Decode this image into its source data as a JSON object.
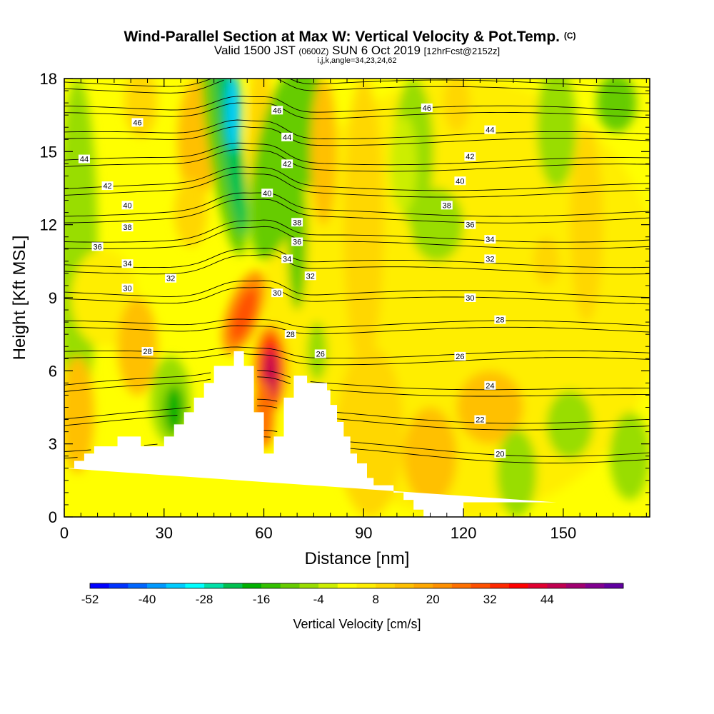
{
  "title": {
    "main": "Wind-Parallel Section at Max W: Vertical Velocity & Pot.Temp.",
    "main_tag": "(C)",
    "sub_a": "Valid 1500 JST",
    "sub_b": "(0600Z)",
    "sub_c": "SUN 6 Oct 2019",
    "sub_d": "[12hrFcst@2152z]",
    "sub_e": "i,j,k,angle=34,23,24,62"
  },
  "chart_data": {
    "type": "heatmap",
    "xlabel": "Distance [nm]",
    "ylabel": "Height [Kft MSL]",
    "xlim": [
      0,
      176
    ],
    "ylim": [
      0,
      18
    ],
    "xticks": [
      0,
      30,
      60,
      90,
      120,
      150
    ],
    "yticks": [
      0,
      3,
      6,
      9,
      12,
      15,
      18
    ],
    "colorbar": {
      "label": "Vertical Velocity [cm/s]",
      "tick_labels": [
        "-52",
        "-40",
        "-28",
        "-16",
        "-4",
        "8",
        "20",
        "32",
        "44"
      ],
      "levels_start": -52,
      "levels_step": 4,
      "colors": [
        "#0000ff",
        "#0033ff",
        "#0066ff",
        "#0099ff",
        "#00ccff",
        "#00ffff",
        "#00e0a8",
        "#00c050",
        "#00b000",
        "#33c000",
        "#66cc00",
        "#99dd00",
        "#ccee00",
        "#ffff00",
        "#ffee00",
        "#ffd700",
        "#ffc000",
        "#ffa800",
        "#ff9000",
        "#ff7000",
        "#ff5000",
        "#ff2800",
        "#ff0000",
        "#e00030",
        "#c00050",
        "#a00070",
        "#800090",
        "#6000a0"
      ]
    },
    "terrain_profile": {
      "x": [
        0,
        3,
        3,
        6,
        6,
        9,
        9,
        16,
        16,
        23,
        23,
        30,
        30,
        33,
        33,
        36,
        36,
        39,
        39,
        42,
        42,
        45,
        45,
        51,
        51,
        54,
        54,
        57,
        57,
        60,
        60,
        63,
        63,
        66,
        66,
        69,
        69,
        73,
        73,
        79,
        79,
        80,
        80,
        82,
        82,
        84,
        84,
        86,
        86,
        88,
        88,
        91,
        91,
        93,
        93,
        99,
        99,
        102,
        102,
        105,
        105,
        108,
        108,
        120,
        120,
        148,
        148,
        176
      ],
      "y": [
        2.0,
        2.0,
        2.3,
        2.3,
        2.6,
        2.6,
        2.9,
        2.9,
        3.3,
        3.3,
        2.9,
        2.9,
        3.3,
        3.3,
        3.8,
        3.8,
        4.3,
        4.3,
        4.9,
        4.9,
        5.5,
        5.5,
        6.2,
        6.2,
        6.8,
        6.8,
        6.2,
        6.2,
        4.3,
        4.3,
        2.6,
        2.6,
        3.3,
        3.3,
        4.9,
        4.9,
        5.8,
        5.8,
        5.5,
        5.5,
        5.2,
        5.2,
        4.6,
        4.6,
        3.9,
        3.9,
        3.3,
        3.3,
        2.6,
        2.6,
        2.2,
        2.2,
        1.6,
        1.6,
        1.3,
        1.3,
        1.0,
        1.0,
        0.7,
        0.7,
        0.3,
        0.3,
        0.0,
        0.0,
        0.6,
        0.6,
        0.6
      ]
    },
    "isentropes_c": [
      20,
      22,
      24,
      26,
      28,
      30,
      32,
      34,
      36,
      38,
      40,
      42,
      44,
      46
    ],
    "contour_labels": [
      {
        "text": "46",
        "x": 22,
        "y": 16.2
      },
      {
        "text": "44",
        "x": 6,
        "y": 14.7
      },
      {
        "text": "42",
        "x": 13,
        "y": 13.6
      },
      {
        "text": "40",
        "x": 19,
        "y": 12.8
      },
      {
        "text": "38",
        "x": 19,
        "y": 11.9
      },
      {
        "text": "36",
        "x": 10,
        "y": 11.1
      },
      {
        "text": "34",
        "x": 19,
        "y": 10.4
      },
      {
        "text": "32",
        "x": 32,
        "y": 9.8
      },
      {
        "text": "30",
        "x": 19,
        "y": 9.4
      },
      {
        "text": "28",
        "x": 25,
        "y": 6.8
      },
      {
        "text": "46",
        "x": 64,
        "y": 16.7
      },
      {
        "text": "44",
        "x": 67,
        "y": 15.6
      },
      {
        "text": "42",
        "x": 67,
        "y": 14.5
      },
      {
        "text": "40",
        "x": 61,
        "y": 13.3
      },
      {
        "text": "38",
        "x": 70,
        "y": 12.1
      },
      {
        "text": "36",
        "x": 70,
        "y": 11.3
      },
      {
        "text": "34",
        "x": 67,
        "y": 10.6
      },
      {
        "text": "32",
        "x": 74,
        "y": 9.9
      },
      {
        "text": "30",
        "x": 64,
        "y": 9.2
      },
      {
        "text": "28",
        "x": 68,
        "y": 7.5
      },
      {
        "text": "26",
        "x": 77,
        "y": 6.7
      },
      {
        "text": "46",
        "x": 109,
        "y": 16.8
      },
      {
        "text": "44",
        "x": 128,
        "y": 15.9
      },
      {
        "text": "42",
        "x": 122,
        "y": 14.8
      },
      {
        "text": "40",
        "x": 119,
        "y": 13.8
      },
      {
        "text": "38",
        "x": 115,
        "y": 12.8
      },
      {
        "text": "36",
        "x": 122,
        "y": 12.0
      },
      {
        "text": "34",
        "x": 128,
        "y": 11.4
      },
      {
        "text": "32",
        "x": 128,
        "y": 10.6
      },
      {
        "text": "30",
        "x": 122,
        "y": 9.0
      },
      {
        "text": "28",
        "x": 131,
        "y": 8.1
      },
      {
        "text": "26",
        "x": 119,
        "y": 6.6
      },
      {
        "text": "24",
        "x": 128,
        "y": 5.4
      },
      {
        "text": "22",
        "x": 125,
        "y": 4.0
      },
      {
        "text": "20",
        "x": 131,
        "y": 2.6
      }
    ]
  }
}
